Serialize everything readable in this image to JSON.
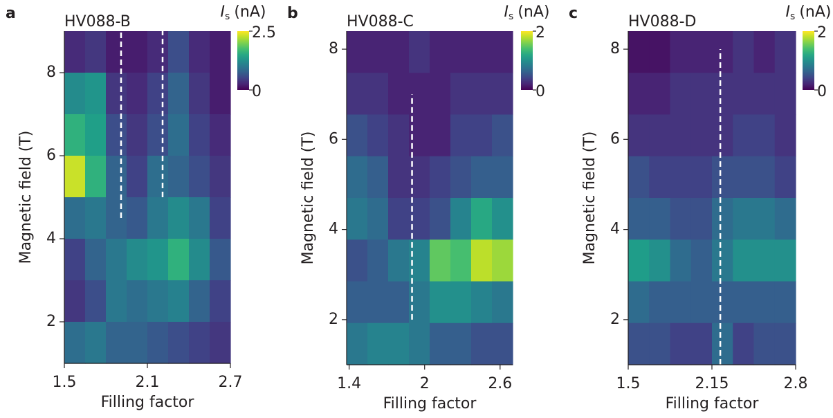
{
  "chart_data": [
    {
      "type": "heatmap",
      "panel": "a",
      "title": "HV088-B",
      "xlabel": "Filling factor",
      "ylabel": "Magnetic field (T)",
      "xlim": [
        1.5,
        2.7
      ],
      "ylim": [
        1,
        9
      ],
      "xticks": [
        1.5,
        2.1,
        2.7
      ],
      "yticks": [
        2,
        4,
        6,
        8
      ],
      "colormap": "viridis",
      "zlim": [
        0,
        2.5
      ],
      "zticks": [
        0,
        2.5
      ],
      "colorbar_label": {
        "symbol": "I",
        "subscript": "s",
        "unit": "(nA)"
      },
      "z": [
        [
          0.3,
          0.4,
          0.2,
          0.2,
          0.3,
          0.6,
          0.3,
          0.2
        ],
        [
          1.2,
          1.3,
          0.4,
          0.3,
          0.5,
          0.8,
          0.4,
          0.2
        ],
        [
          1.6,
          1.4,
          0.6,
          0.4,
          0.6,
          0.9,
          0.5,
          0.3
        ],
        [
          2.3,
          1.6,
          0.8,
          0.5,
          0.9,
          0.8,
          0.6,
          0.4
        ],
        [
          0.9,
          1.0,
          0.8,
          0.7,
          1.0,
          1.2,
          1.0,
          0.5
        ],
        [
          0.5,
          0.8,
          1.0,
          1.2,
          1.3,
          1.6,
          1.2,
          0.7
        ],
        [
          0.4,
          0.6,
          1.0,
          0.9,
          1.0,
          1.1,
          0.8,
          0.5
        ],
        [
          0.9,
          1.0,
          0.8,
          0.8,
          0.7,
          0.6,
          0.5,
          0.4
        ]
      ],
      "dashed_lines": [
        {
          "x": 1.91,
          "y": [
            4.5,
            9
          ]
        },
        {
          "x": 2.21,
          "y": [
            5.0,
            9
          ]
        }
      ]
    },
    {
      "type": "heatmap",
      "panel": "b",
      "title": "HV088-C",
      "xlabel": "Filling factor",
      "ylabel": "Magnetic field (T)",
      "xlim": [
        1.38,
        2.7
      ],
      "ylim": [
        1,
        8.4
      ],
      "xticks": [
        1.4,
        2,
        2.6
      ],
      "yticks": [
        2,
        4,
        6,
        8
      ],
      "colormap": "viridis",
      "zlim": [
        0,
        2
      ],
      "zticks": [
        0,
        2
      ],
      "colorbar_label": {
        "symbol": "I",
        "subscript": "s",
        "unit": "(nA)"
      },
      "z": [
        [
          0.2,
          0.2,
          0.2,
          0.3,
          0.2,
          0.2,
          0.2,
          0.2
        ],
        [
          0.3,
          0.3,
          0.2,
          0.2,
          0.2,
          0.3,
          0.3,
          0.3
        ],
        [
          0.5,
          0.4,
          0.3,
          0.2,
          0.2,
          0.4,
          0.4,
          0.5
        ],
        [
          0.7,
          0.6,
          0.3,
          0.3,
          0.4,
          0.5,
          0.6,
          0.6
        ],
        [
          0.8,
          0.7,
          0.4,
          0.4,
          0.5,
          0.9,
          1.2,
          1.0
        ],
        [
          0.5,
          0.6,
          0.8,
          0.9,
          1.5,
          1.4,
          1.8,
          1.7
        ],
        [
          0.6,
          0.6,
          0.6,
          0.8,
          1.0,
          1.0,
          0.9,
          0.8
        ],
        [
          0.8,
          0.9,
          0.9,
          0.8,
          0.6,
          0.6,
          0.5,
          0.5
        ]
      ],
      "dashed_lines": [
        {
          "x": 1.9,
          "y": [
            2,
            7
          ]
        }
      ]
    },
    {
      "type": "heatmap",
      "panel": "c",
      "title": "HV088-D",
      "xlabel": "Filling factor",
      "ylabel": "Magnetic field (T)",
      "xlim": [
        1.5,
        2.8
      ],
      "ylim": [
        1,
        8.4
      ],
      "xticks": [
        1.5,
        2.15,
        2.8
      ],
      "yticks": [
        2,
        4,
        6,
        8
      ],
      "colormap": "viridis",
      "zlim": [
        0,
        2
      ],
      "zticks": [
        0,
        2
      ],
      "colorbar_label": {
        "symbol": "I",
        "subscript": "s",
        "unit": "(nA)"
      },
      "z": [
        [
          0.1,
          0.1,
          0.2,
          0.2,
          0.2,
          0.3,
          0.2,
          0.3
        ],
        [
          0.2,
          0.2,
          0.3,
          0.3,
          0.3,
          0.3,
          0.3,
          0.3
        ],
        [
          0.3,
          0.3,
          0.3,
          0.3,
          0.3,
          0.4,
          0.4,
          0.3
        ],
        [
          0.5,
          0.4,
          0.4,
          0.4,
          0.5,
          0.5,
          0.5,
          0.4
        ],
        [
          0.6,
          0.6,
          0.5,
          0.5,
          0.7,
          0.8,
          0.8,
          0.7
        ],
        [
          1.1,
          1.0,
          0.7,
          0.6,
          0.8,
          1.0,
          1.0,
          1.0
        ],
        [
          0.7,
          0.6,
          0.6,
          0.6,
          0.6,
          0.6,
          0.6,
          0.6
        ],
        [
          0.5,
          0.5,
          0.4,
          0.4,
          0.7,
          0.4,
          0.5,
          0.5
        ]
      ],
      "dashed_lines": [
        {
          "x": 2.215,
          "y": [
            1,
            8
          ]
        }
      ]
    }
  ]
}
